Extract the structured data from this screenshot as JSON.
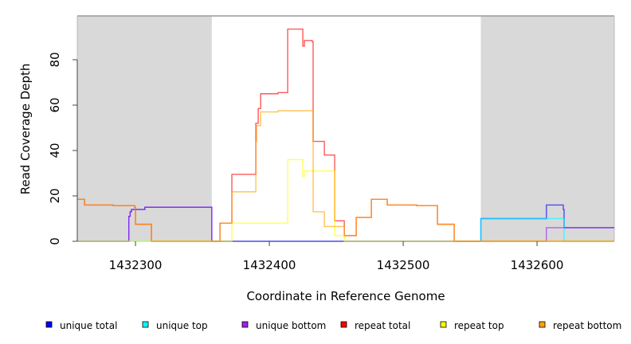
{
  "chart_data": {
    "type": "line",
    "step": true,
    "xlabel": "Coordinate in Reference Genome",
    "ylabel": "Read Coverage Depth",
    "xlim": [
      1432256.5,
      1432657.7
    ],
    "ylim": [
      0,
      99.3
    ],
    "xticks": [
      1432300,
      1432400,
      1432500,
      1432600
    ],
    "xtick_labels": [
      "1432300",
      "1432400",
      "1432500",
      "1432600"
    ],
    "yticks": [
      0,
      20,
      40,
      60,
      80
    ],
    "ytick_labels": [
      "0",
      "20",
      "40",
      "60",
      "80"
    ],
    "shaded_regions": [
      [
        1432256.5,
        1432357
      ],
      [
        1432558,
        1432657.7
      ]
    ],
    "legend_position": "bottom",
    "series": [
      {
        "name": "unique total",
        "color": "#0000ff",
        "steps": [
          [
            1432256.5,
            0
          ],
          [
            1432295,
            11
          ],
          [
            1432296,
            13
          ],
          [
            1432297,
            14
          ],
          [
            1432307,
            15
          ],
          [
            1432357,
            0
          ],
          [
            1432558,
            10
          ],
          [
            1432607,
            16
          ],
          [
            1432619.6,
            14
          ],
          [
            1432620.2,
            6
          ]
        ]
      },
      {
        "name": "unique top",
        "color": "#00ffff",
        "steps": [
          [
            1432256.5,
            0
          ],
          [
            1432558,
            10
          ],
          [
            1432620.2,
            0
          ]
        ]
      },
      {
        "name": "unique bottom",
        "color": "#a020f0",
        "steps": [
          [
            1432256.5,
            0
          ],
          [
            1432295,
            11
          ],
          [
            1432296,
            13
          ],
          [
            1432297,
            14
          ],
          [
            1432307,
            15
          ],
          [
            1432357,
            0
          ],
          [
            1432607,
            6
          ]
        ]
      },
      {
        "name": "repeat total",
        "color": "#ff0000",
        "steps": [
          [
            1432256.5,
            18.5
          ],
          [
            1432261.9,
            16
          ],
          [
            1432283.3,
            15.7
          ],
          [
            1432299.4,
            15
          ],
          [
            1432300,
            7.5
          ],
          [
            1432311.9,
            0
          ],
          [
            1432363.1,
            8
          ],
          [
            1432372,
            29.5
          ],
          [
            1432389.9,
            52
          ],
          [
            1432391.7,
            58.5
          ],
          [
            1432393.5,
            65
          ],
          [
            1432406.5,
            65.5
          ],
          [
            1432413.7,
            93.5
          ],
          [
            1432425,
            86
          ],
          [
            1432426.2,
            88.5
          ],
          [
            1432432,
            88
          ],
          [
            1432432.7,
            44
          ],
          [
            1432441.1,
            38
          ],
          [
            1432448.8,
            9
          ],
          [
            1432456,
            2.5
          ],
          [
            1432464.9,
            10.5
          ],
          [
            1432476.2,
            18.5
          ],
          [
            1432488.1,
            16
          ],
          [
            1432510.1,
            15.7
          ],
          [
            1432525.6,
            7.5
          ],
          [
            1432538.1,
            0
          ]
        ]
      },
      {
        "name": "repeat top",
        "color": "#ffff00",
        "steps": [
          [
            1432256.5,
            0
          ],
          [
            1432372,
            8
          ],
          [
            1432413.7,
            36
          ],
          [
            1432425,
            28.5
          ],
          [
            1432426.2,
            31
          ],
          [
            1432448.8,
            2.5
          ],
          [
            1432456,
            0
          ]
        ]
      },
      {
        "name": "repeat bottom",
        "color": "#ffa500",
        "steps": [
          [
            1432256.5,
            18.5
          ],
          [
            1432261.9,
            16
          ],
          [
            1432283.3,
            15.7
          ],
          [
            1432299.4,
            15
          ],
          [
            1432300,
            7.5
          ],
          [
            1432311.9,
            0
          ],
          [
            1432363.1,
            8
          ],
          [
            1432372,
            21.8
          ],
          [
            1432389.9,
            44
          ],
          [
            1432390.5,
            51
          ],
          [
            1432393.5,
            57
          ],
          [
            1432406.5,
            57.5
          ],
          [
            1432432.7,
            13
          ],
          [
            1432441.1,
            6.5
          ],
          [
            1432448.8,
            6.5
          ],
          [
            1432456,
            2.5
          ],
          [
            1432464.9,
            10.5
          ],
          [
            1432476.2,
            18.5
          ],
          [
            1432488.1,
            16
          ],
          [
            1432510.1,
            15.7
          ],
          [
            1432525.6,
            7.5
          ],
          [
            1432538.1,
            0
          ]
        ]
      }
    ]
  }
}
